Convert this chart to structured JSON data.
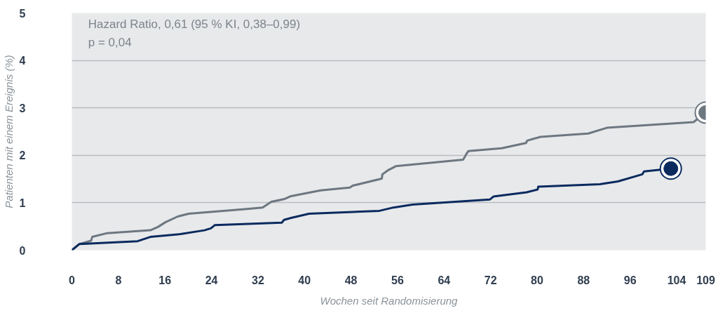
{
  "chart_data": {
    "type": "line",
    "xlabel": "Wochen seit Randomisierung",
    "ylabel": "Patienten mit einem Ereignis (%)",
    "annotations": [
      "Hazard Ratio, 0,61 (95 % KI, 0,38–0,99)",
      "p = 0,04"
    ],
    "xlim": [
      0,
      109
    ],
    "xticks": [
      0,
      8,
      16,
      24,
      32,
      40,
      48,
      56,
      64,
      72,
      80,
      88,
      96,
      104,
      109
    ],
    "ylim": [
      0,
      5
    ],
    "yticks": [
      0,
      1,
      2,
      3,
      4,
      5
    ],
    "grid": "y",
    "line_style": "solid",
    "series": [
      {
        "color": "#6d7780",
        "x": [
          0,
          1.3,
          3.3,
          3.5,
          6.1,
          13.5,
          14.8,
          16.1,
          18.2,
          20.1,
          29.4,
          32.8,
          34.3,
          36.6,
          37.7,
          42.8,
          47.8,
          48.3,
          53.3,
          53.4,
          54.3,
          55.7,
          67.3,
          67.8,
          68.2,
          73.9,
          78.1,
          78.3,
          80.6,
          88.8,
          92,
          106.9,
          109
        ],
        "values": [
          0,
          0.13,
          0.2,
          0.28,
          0.36,
          0.42,
          0.49,
          0.59,
          0.71,
          0.77,
          0.86,
          0.9,
          1.02,
          1.08,
          1.14,
          1.26,
          1.32,
          1.36,
          1.51,
          1.6,
          1.68,
          1.77,
          1.91,
          2.02,
          2.09,
          2.15,
          2.26,
          2.31,
          2.39,
          2.46,
          2.58,
          2.7,
          2.9
        ]
      },
      {
        "color": "#0a2a5e",
        "x": [
          0,
          1.3,
          11.3,
          13.5,
          18.7,
          22.8,
          23.9,
          24.6,
          36.1,
          36.5,
          37.7,
          40.8,
          52.9,
          55.3,
          58.6,
          71.9,
          72.5,
          78.2,
          80.1,
          80.2,
          90.8,
          93.9,
          98.1,
          98.4,
          103
        ],
        "values": [
          0,
          0.13,
          0.19,
          0.28,
          0.34,
          0.42,
          0.46,
          0.53,
          0.58,
          0.64,
          0.68,
          0.77,
          0.83,
          0.9,
          0.96,
          1.07,
          1.13,
          1.22,
          1.28,
          1.34,
          1.39,
          1.45,
          1.6,
          1.66,
          1.72
        ]
      },
      {
        "type": "scatter",
        "marker": "circle",
        "color": "#6d7780",
        "x": [
          109
        ],
        "values": [
          2.9
        ]
      },
      {
        "type": "scatter",
        "marker": "circle",
        "color": "#0a2a5e",
        "x": [
          103
        ],
        "values": [
          1.72
        ]
      }
    ]
  }
}
